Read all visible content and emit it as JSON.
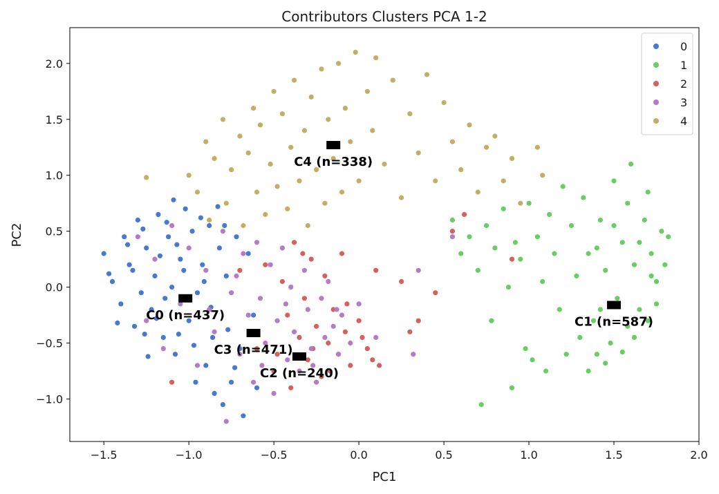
{
  "chart_data": {
    "type": "scatter",
    "title": "Contributors Clusters PCA 1-2",
    "xlabel": "PC1",
    "ylabel": "PC2",
    "xlim": [
      -1.7,
      2.0
    ],
    "ylim": [
      -1.38,
      2.32
    ],
    "xticks": [
      -1.5,
      -1.0,
      -0.5,
      0.0,
      0.5,
      1.0,
      1.5,
      2.0
    ],
    "xtick_labels": [
      "−1.5",
      "−1.0",
      "−0.5",
      "0.0",
      "0.5",
      "1.0",
      "1.5",
      "2.0"
    ],
    "yticks": [
      -1.0,
      -0.5,
      0.0,
      0.5,
      1.0,
      1.5,
      2.0
    ],
    "ytick_labels": [
      "−1.0",
      "−0.5",
      "0.0",
      "0.5",
      "1.0",
      "1.5",
      "2.0"
    ],
    "grid": false,
    "legend_position": "top-right",
    "series": [
      {
        "name": "0",
        "color": "#4878d0",
        "points": [
          [
            -1.5,
            0.3
          ],
          [
            -1.45,
            0.05
          ],
          [
            -1.4,
            -0.15
          ],
          [
            -1.38,
            0.45
          ],
          [
            -1.35,
            0.2
          ],
          [
            -1.32,
            -0.35
          ],
          [
            -1.3,
            0.6
          ],
          [
            -1.28,
            -0.05
          ],
          [
            -1.25,
            0.35
          ],
          [
            -1.22,
            -0.2
          ],
          [
            -1.2,
            0.1
          ],
          [
            -1.18,
            0.65
          ],
          [
            -1.15,
            -0.45
          ],
          [
            -1.12,
            0.45
          ],
          [
            -1.1,
            0.0
          ],
          [
            -1.08,
            -0.6
          ],
          [
            -1.05,
            0.25
          ],
          [
            -1.02,
            0.7
          ],
          [
            -1.0,
            -0.3
          ],
          [
            -0.98,
            0.5
          ],
          [
            -0.95,
            -0.05
          ],
          [
            -0.92,
            0.2
          ],
          [
            -0.9,
            -0.7
          ],
          [
            -0.88,
            0.55
          ],
          [
            -0.85,
            -0.95
          ],
          [
            -0.82,
            0.35
          ],
          [
            -0.8,
            -1.05
          ],
          [
            -0.78,
            0.1
          ],
          [
            -0.75,
            -0.85
          ],
          [
            -0.72,
            0.45
          ],
          [
            -0.7,
            -0.55
          ],
          [
            -0.68,
            -1.15
          ],
          [
            -0.65,
            0.3
          ],
          [
            -0.62,
            -0.25
          ],
          [
            -1.47,
            0.12
          ],
          [
            -1.42,
            -0.32
          ],
          [
            -1.36,
            0.38
          ],
          [
            -1.27,
            0.52
          ],
          [
            -1.24,
            -0.62
          ],
          [
            -1.17,
            0.28
          ],
          [
            -1.14,
            -0.1
          ],
          [
            -1.09,
            0.78
          ],
          [
            -1.06,
            -0.42
          ],
          [
            -1.03,
            0.15
          ],
          [
            -0.97,
            -0.52
          ],
          [
            -0.93,
            0.62
          ],
          [
            -0.87,
            -0.18
          ],
          [
            -0.83,
            0.72
          ],
          [
            -0.77,
            -0.38
          ],
          [
            -0.73,
            -0.72
          ],
          [
            -1.33,
            0.15
          ],
          [
            -1.26,
            -0.42
          ],
          [
            -1.19,
            -0.28
          ],
          [
            -1.13,
            0.58
          ],
          [
            -1.07,
            0.38
          ],
          [
            -0.96,
            -0.85
          ],
          [
            -0.91,
            0.05
          ],
          [
            -0.86,
            -0.45
          ],
          [
            -0.79,
            0.55
          ],
          [
            -0.6,
            -0.9
          ]
        ]
      },
      {
        "name": "1",
        "color": "#6acc64",
        "points": [
          [
            0.55,
            0.6
          ],
          [
            0.6,
            0.3
          ],
          [
            0.65,
            0.45
          ],
          [
            0.7,
            0.15
          ],
          [
            0.72,
            -1.05
          ],
          [
            0.75,
            0.55
          ],
          [
            0.78,
            -0.3
          ],
          [
            0.8,
            0.35
          ],
          [
            0.85,
            0.7
          ],
          [
            0.88,
            0.0
          ],
          [
            0.9,
            -0.9
          ],
          [
            0.92,
            0.4
          ],
          [
            0.95,
            0.25
          ],
          [
            0.98,
            -0.55
          ],
          [
            1.0,
            0.75
          ],
          [
            1.02,
            -0.65
          ],
          [
            1.05,
            0.45
          ],
          [
            1.08,
            0.05
          ],
          [
            1.1,
            -0.75
          ],
          [
            1.12,
            0.65
          ],
          [
            1.15,
            0.3
          ],
          [
            1.18,
            -0.2
          ],
          [
            1.2,
            0.9
          ],
          [
            1.22,
            -0.6
          ],
          [
            1.25,
            0.55
          ],
          [
            1.28,
            0.1
          ],
          [
            1.3,
            -0.45
          ],
          [
            1.32,
            0.8
          ],
          [
            1.35,
            0.3
          ],
          [
            1.38,
            -0.3
          ],
          [
            1.4,
            -0.6
          ],
          [
            1.42,
            0.6
          ],
          [
            1.45,
            0.15
          ],
          [
            1.48,
            -0.5
          ],
          [
            1.5,
            0.95
          ],
          [
            1.52,
            -0.1
          ],
          [
            1.55,
            0.4
          ],
          [
            1.58,
            -0.35
          ],
          [
            1.6,
            1.1
          ],
          [
            1.62,
            0.2
          ],
          [
            1.65,
            -0.2
          ],
          [
            1.68,
            0.6
          ],
          [
            1.7,
            0.85
          ],
          [
            1.72,
            0.3
          ],
          [
            1.75,
            0.05
          ],
          [
            1.78,
            0.5
          ],
          [
            1.8,
            0.2
          ],
          [
            1.82,
            0.45
          ],
          [
            1.35,
            -0.75
          ],
          [
            1.45,
            -0.68
          ],
          [
            1.55,
            -0.58
          ],
          [
            1.62,
            -0.45
          ],
          [
            1.7,
            -0.3
          ],
          [
            1.75,
            -0.15
          ],
          [
            1.42,
            -0.2
          ],
          [
            1.5,
            0.55
          ],
          [
            1.58,
            0.75
          ],
          [
            1.65,
            0.4
          ],
          [
            1.72,
            0.1
          ],
          [
            1.4,
            0.35
          ]
        ]
      },
      {
        "name": "2",
        "color": "#d65f5f",
        "points": [
          [
            -1.1,
            -0.85
          ],
          [
            -0.7,
            0.15
          ],
          [
            -0.6,
            -0.55
          ],
          [
            -0.55,
            0.2
          ],
          [
            -0.5,
            -0.75
          ],
          [
            -0.45,
            0.05
          ],
          [
            -0.4,
            -0.9
          ],
          [
            -0.38,
            0.4
          ],
          [
            -0.35,
            -0.45
          ],
          [
            -0.32,
            -0.1
          ],
          [
            -0.3,
            -0.65
          ],
          [
            -0.28,
            0.25
          ],
          [
            -0.25,
            -0.35
          ],
          [
            -0.22,
            -0.8
          ],
          [
            -0.2,
            0.1
          ],
          [
            -0.18,
            -0.5
          ],
          [
            -0.15,
            -0.2
          ],
          [
            -0.12,
            -0.6
          ],
          [
            -0.1,
            0.3
          ],
          [
            -0.08,
            -0.4
          ],
          [
            -0.05,
            -0.7
          ],
          [
            0.0,
            -0.3
          ],
          [
            0.05,
            -0.55
          ],
          [
            0.1,
            0.15
          ],
          [
            0.12,
            -0.7
          ],
          [
            0.25,
            0.05
          ],
          [
            0.3,
            -0.4
          ],
          [
            0.35,
            -0.3
          ],
          [
            0.45,
            -0.05
          ],
          [
            0.55,
            0.5
          ],
          [
            0.62,
            0.65
          ],
          [
            0.9,
            0.25
          ],
          [
            -0.42,
            -0.25
          ],
          [
            -0.27,
            -0.55
          ],
          [
            -0.17,
            -0.75
          ],
          [
            -0.07,
            -0.15
          ],
          [
            0.02,
            -0.45
          ],
          [
            0.08,
            -0.65
          ],
          [
            -0.33,
            0.3
          ],
          [
            -0.48,
            -0.6
          ]
        ]
      },
      {
        "name": "3",
        "color": "#b47cc7",
        "points": [
          [
            -1.3,
            0.45
          ],
          [
            -1.25,
            -0.3
          ],
          [
            -1.2,
            0.25
          ],
          [
            -1.15,
            -0.55
          ],
          [
            -1.1,
            0.55
          ],
          [
            -1.05,
            -0.15
          ],
          [
            -1.0,
            0.35
          ],
          [
            -0.95,
            -0.7
          ],
          [
            -0.9,
            0.15
          ],
          [
            -0.85,
            -0.4
          ],
          [
            -0.8,
            0.5
          ],
          [
            -0.78,
            -1.2
          ],
          [
            -0.75,
            -0.05
          ],
          [
            -0.7,
            -0.6
          ],
          [
            -0.68,
            0.3
          ],
          [
            -0.65,
            -0.25
          ],
          [
            -0.62,
            -0.85
          ],
          [
            -0.6,
            0.4
          ],
          [
            -0.58,
            -0.1
          ],
          [
            -0.55,
            -0.5
          ],
          [
            -0.52,
            0.2
          ],
          [
            -0.5,
            -0.95
          ],
          [
            -0.48,
            -0.3
          ],
          [
            -0.45,
            0.35
          ],
          [
            -0.42,
            -0.65
          ],
          [
            -0.4,
            0.0
          ],
          [
            -0.38,
            -0.4
          ],
          [
            -0.35,
            -0.75
          ],
          [
            -0.32,
            0.15
          ],
          [
            -0.3,
            -0.2
          ],
          [
            -0.28,
            -0.55
          ],
          [
            -0.25,
            -0.85
          ],
          [
            -0.22,
            -0.1
          ],
          [
            -0.2,
            -0.45
          ],
          [
            -0.18,
            0.05
          ],
          [
            -0.15,
            -0.35
          ],
          [
            -0.12,
            -0.6
          ],
          [
            -0.1,
            -0.25
          ],
          [
            -0.05,
            -0.5
          ],
          [
            0.0,
            -0.15
          ],
          [
            0.1,
            -0.45
          ],
          [
            0.32,
            -0.6
          ],
          [
            0.35,
            0.15
          ],
          [
            0.55,
            0.45
          ],
          [
            -0.88,
            -0.2
          ],
          [
            -0.72,
            0.1
          ],
          [
            -0.57,
            -0.7
          ],
          [
            -0.43,
            -0.15
          ],
          [
            -0.27,
            -0.7
          ],
          [
            -0.13,
            -0.2
          ]
        ]
      },
      {
        "name": "4",
        "color": "#c4ad66",
        "points": [
          [
            -1.25,
            0.98
          ],
          [
            -1.0,
            1.0
          ],
          [
            -0.95,
            0.85
          ],
          [
            -0.9,
            1.3
          ],
          [
            -0.88,
            0.6
          ],
          [
            -0.85,
            1.15
          ],
          [
            -0.8,
            1.5
          ],
          [
            -0.78,
            0.75
          ],
          [
            -0.75,
            1.05
          ],
          [
            -0.7,
            1.35
          ],
          [
            -0.68,
            0.55
          ],
          [
            -0.65,
            1.2
          ],
          [
            -0.62,
            1.6
          ],
          [
            -0.6,
            0.85
          ],
          [
            -0.58,
            1.45
          ],
          [
            -0.55,
            0.65
          ],
          [
            -0.52,
            1.1
          ],
          [
            -0.5,
            1.75
          ],
          [
            -0.48,
            0.9
          ],
          [
            -0.45,
            1.55
          ],
          [
            -0.42,
            0.7
          ],
          [
            -0.4,
            1.25
          ],
          [
            -0.38,
            1.85
          ],
          [
            -0.35,
            0.95
          ],
          [
            -0.32,
            1.4
          ],
          [
            -0.3,
            0.55
          ],
          [
            -0.28,
            1.7
          ],
          [
            -0.25,
            1.05
          ],
          [
            -0.22,
            1.95
          ],
          [
            -0.2,
            0.75
          ],
          [
            -0.18,
            1.5
          ],
          [
            -0.15,
            1.15
          ],
          [
            -0.12,
            2.0
          ],
          [
            -0.1,
            0.85
          ],
          [
            -0.08,
            1.6
          ],
          [
            -0.05,
            1.3
          ],
          [
            -0.02,
            2.1
          ],
          [
            0.0,
            0.95
          ],
          [
            0.05,
            1.75
          ],
          [
            0.08,
            1.4
          ],
          [
            0.1,
            2.05
          ],
          [
            0.15,
            1.1
          ],
          [
            0.2,
            1.85
          ],
          [
            0.25,
            0.8
          ],
          [
            0.3,
            1.55
          ],
          [
            0.35,
            1.2
          ],
          [
            0.4,
            1.9
          ],
          [
            0.45,
            0.95
          ],
          [
            0.5,
            1.65
          ],
          [
            0.55,
            1.3
          ],
          [
            0.6,
            1.05
          ],
          [
            0.65,
            1.45
          ],
          [
            0.7,
            0.85
          ],
          [
            0.75,
            1.25
          ],
          [
            0.8,
            1.35
          ],
          [
            0.85,
            0.95
          ],
          [
            0.9,
            1.15
          ],
          [
            0.95,
            0.75
          ],
          [
            1.05,
            1.25
          ],
          [
            1.08,
            1.0
          ]
        ]
      }
    ],
    "centroids": [
      {
        "label": "C0 (n=437)",
        "x": -1.02,
        "y": -0.1
      },
      {
        "label": "C1 (n=587)",
        "x": 1.5,
        "y": -0.16
      },
      {
        "label": "C2 (n=240)",
        "x": -0.35,
        "y": -0.62
      },
      {
        "label": "C3 (n=471)",
        "x": -0.62,
        "y": -0.41
      },
      {
        "label": "C4 (n=338)",
        "x": -0.15,
        "y": 1.27
      }
    ]
  }
}
